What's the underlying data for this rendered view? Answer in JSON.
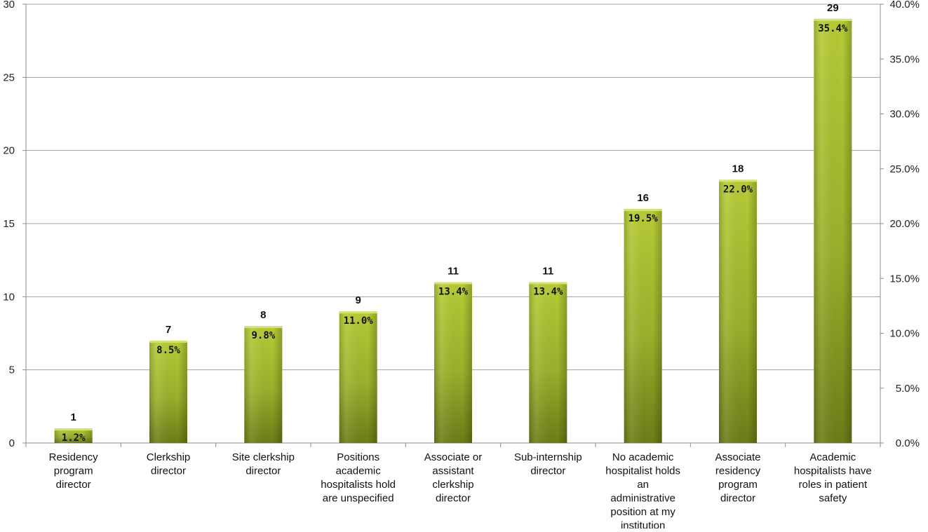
{
  "chart_data": {
    "type": "bar",
    "categories": [
      [
        "Residency",
        "program",
        "director"
      ],
      [
        "Clerkship",
        "director"
      ],
      [
        "Site clerkship",
        "director"
      ],
      [
        "Positions",
        "academic",
        "hospitalists hold",
        "are unspecified"
      ],
      [
        "Associate or",
        "assistant",
        "clerkship",
        "director"
      ],
      [
        "Sub-internship",
        "director"
      ],
      [
        "No academic",
        "hospitalist holds",
        "an",
        "administrative",
        "position at my",
        "institution"
      ],
      [
        "Associate",
        "residency",
        "program",
        "director"
      ],
      [
        "Academic",
        "hospitalists have",
        "roles in patient",
        "safety"
      ]
    ],
    "values": [
      1,
      7,
      8,
      9,
      11,
      11,
      16,
      18,
      29
    ],
    "value_labels": [
      "1",
      "7",
      "8",
      "9",
      "11",
      "11",
      "16",
      "18",
      "29"
    ],
    "percent_labels": [
      "1.2%",
      "8.5%",
      "9.8%",
      "11.0%",
      "13.4%",
      "13.4%",
      "19.5%",
      "22.0%",
      "35.4%"
    ],
    "ylim": [
      0,
      30
    ],
    "y_ticks": [
      "0",
      "5",
      "10",
      "15",
      "20",
      "25",
      "30"
    ],
    "y_tick_values": [
      0,
      5,
      10,
      15,
      20,
      25,
      30
    ],
    "y2lim": [
      0,
      40
    ],
    "y2_ticks": [
      "0.0%",
      "5.0%",
      "10.0%",
      "15.0%",
      "20.0%",
      "25.0%",
      "30.0%",
      "35.0%",
      "40.0%"
    ],
    "y2_tick_values": [
      0,
      5,
      10,
      15,
      20,
      25,
      30,
      35,
      40
    ],
    "grid": true,
    "legend": "none",
    "colors": {
      "bar_light": "#b7cc35",
      "bar_mid": "#9ab02a",
      "bar_dark": "#6b7d16",
      "bar_top": "#d6e56a",
      "grid": "#a0a0a0",
      "axis": "#8c8c8c"
    }
  }
}
